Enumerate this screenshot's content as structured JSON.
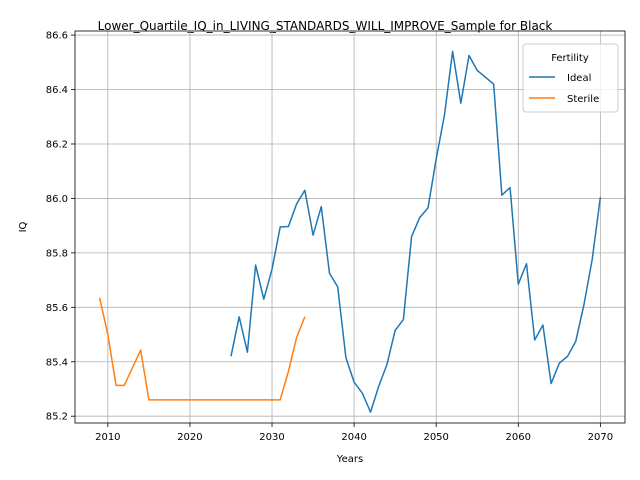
{
  "chart_data": {
    "type": "line",
    "title": "Lower_Quartile_IQ_in_LIVING_STANDARDS_WILL_IMPROVE_Sample for Black",
    "xlabel": "Years",
    "ylabel": "IQ",
    "xlim": [
      2006,
      2073
    ],
    "ylim": [
      85.175,
      86.615
    ],
    "xticks": [
      2010,
      2020,
      2030,
      2040,
      2050,
      2060,
      2070
    ],
    "yticks": [
      85.2,
      85.4,
      85.6,
      85.8,
      86.0,
      86.2,
      86.4,
      86.6
    ],
    "grid": true,
    "legend": {
      "title": "Fertility",
      "position": "top-right"
    },
    "series": [
      {
        "name": "Ideal",
        "color": "#1f77b4",
        "x": [
          2025,
          2026,
          2027,
          2028,
          2029,
          2030,
          2031,
          2032,
          2033,
          2034,
          2035,
          2036,
          2037,
          2038,
          2039,
          2040,
          2041,
          2042,
          2043,
          2044,
          2045,
          2046,
          2047,
          2048,
          2049,
          2050,
          2051,
          2052,
          2053,
          2054,
          2055,
          2056,
          2057,
          2058,
          2059,
          2060,
          2061,
          2062,
          2063,
          2064,
          2065,
          2066,
          2067,
          2068,
          2069,
          2070
        ],
        "y": [
          85.42,
          85.565,
          85.435,
          85.755,
          85.63,
          85.74,
          85.895,
          85.897,
          85.98,
          86.03,
          85.865,
          85.97,
          85.725,
          85.675,
          85.415,
          85.325,
          85.285,
          85.215,
          85.31,
          85.39,
          85.515,
          85.555,
          85.86,
          85.93,
          85.965,
          86.145,
          86.305,
          86.54,
          86.35,
          86.525,
          86.47,
          86.445,
          86.42,
          86.012,
          86.04,
          85.685,
          85.76,
          85.48,
          85.535,
          85.32,
          85.395,
          85.42,
          85.475,
          85.61,
          85.775,
          86.005
        ]
      },
      {
        "name": "Sterile",
        "color": "#ff7f0e",
        "x": [
          2009,
          2010,
          2011,
          2012,
          2013,
          2014,
          2015,
          2016,
          2017,
          2018,
          2019,
          2020,
          2021,
          2022,
          2023,
          2024,
          2025,
          2026,
          2027,
          2028,
          2029,
          2030,
          2031,
          2032,
          2033,
          2034
        ],
        "y": [
          85.635,
          85.5,
          85.313,
          85.313,
          85.378,
          85.443,
          85.26,
          85.26,
          85.26,
          85.26,
          85.26,
          85.26,
          85.26,
          85.26,
          85.26,
          85.26,
          85.26,
          85.26,
          85.26,
          85.26,
          85.26,
          85.26,
          85.26,
          85.365,
          85.49,
          85.565
        ]
      }
    ]
  }
}
